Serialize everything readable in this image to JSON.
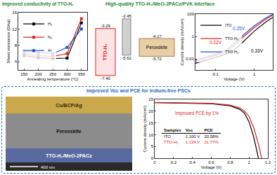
{
  "headers": {
    "conductivity": "Improved conductivity of TTO-H₂",
    "interface": "High-quality TTO-H₂/MeO-2PACz/PVK interface",
    "device": "Improved Voc and PCE for indium-free PSCs"
  },
  "chart_data": [
    {
      "type": "line",
      "x_label": "Annealing temperature (°C)",
      "y_label": "Sheet resistance (Ω/sq)",
      "x": [
        150,
        200,
        250,
        300,
        350
      ],
      "series": [
        {
          "name": "H₂",
          "color": "#000000",
          "values": [
            5.5,
            5.0,
            4.8,
            4.9,
            13.5
          ]
        },
        {
          "name": "N₂",
          "color": "#e02020",
          "values": [
            6.0,
            5.5,
            5.3,
            6.0,
            14.5
          ]
        },
        {
          "name": "Ar",
          "color": "#2050d0",
          "values": [
            6.5,
            6.2,
            6.0,
            7.5,
            12.0
          ]
        }
      ],
      "xlim": [
        130,
        370
      ],
      "xticks": [
        150,
        200,
        250,
        300,
        350
      ],
      "ylim": [
        2,
        16
      ],
      "yticks": [
        4,
        8,
        12,
        16
      ],
      "grid": false,
      "legend": "upper left",
      "marker": "square"
    },
    {
      "type": "line",
      "x_label": "Voltage (V)",
      "y_label": "Current density (mA/cm²)",
      "log": true,
      "x": [
        0.03,
        0.06,
        0.1,
        0.2,
        0.3,
        0.5,
        1,
        2,
        3
      ],
      "series": [
        {
          "name": "ITO",
          "color": "#000000",
          "values": [
            0.004,
            0.008,
            0.013,
            0.03,
            0.06,
            0.3,
            3,
            20,
            50
          ]
        },
        {
          "name": "TTO-N₂",
          "color": "#e02020",
          "values": [
            0.006,
            0.012,
            0.02,
            0.05,
            0.15,
            0.8,
            6,
            35,
            80
          ]
        },
        {
          "name": "TTO-H₂",
          "color": "#2050d0",
          "values": [
            0.008,
            0.016,
            0.027,
            0.07,
            0.25,
            1.2,
            9,
            45,
            95
          ]
        }
      ],
      "xlim": [
        0.03,
        3
      ],
      "xticks": [
        0.1,
        1
      ],
      "ylim": [
        0.001,
        100
      ],
      "yticks": [
        0.01,
        1,
        100
      ],
      "grid": false,
      "legend": "upper left",
      "annotations": [
        {
          "text": "0.22V",
          "x": 0.1,
          "y": 0.3,
          "color": "#e02020"
        },
        {
          "text": "0.25V",
          "x": 0.4,
          "y": 5,
          "color": "#2050d0"
        },
        {
          "text": "0.33V",
          "x": 1.2,
          "y": 0.05,
          "color": "#000000"
        }
      ]
    },
    {
      "type": "line",
      "x_label": "Voltage (V)",
      "y_label": "Current density (mA/cm²)",
      "series": [
        {
          "name": "ITO",
          "color": "#000000",
          "x": [
            0,
            0.2,
            0.4,
            0.6,
            0.8,
            0.9,
            0.95,
            1.0,
            1.05,
            1.1
          ],
          "values": [
            23.6,
            23.5,
            23.4,
            23.2,
            22.3,
            20.8,
            19.3,
            15.5,
            9.0,
            0
          ]
        },
        {
          "name": "TTO-H₂",
          "color": "#e02020",
          "x": [
            0,
            0.2,
            0.4,
            0.6,
            0.8,
            0.9,
            0.95,
            1.0,
            1.05,
            1.1,
            1.134
          ],
          "values": [
            23.7,
            23.6,
            23.5,
            23.3,
            22.6,
            21.4,
            20.2,
            17.8,
            13.0,
            6.0,
            0
          ]
        }
      ],
      "xlim": [
        0,
        1.2
      ],
      "xticks": [
        0,
        0.2,
        0.4,
        0.6,
        0.8,
        1.0,
        1.2
      ],
      "ylim": [
        0,
        25
      ],
      "yticks": [
        0,
        5,
        10,
        15,
        20,
        25
      ],
      "grid": false,
      "annotations": [
        {
          "text": "Improved PCE by 1%",
          "x": 0.45,
          "y": 19,
          "color": "#e02020"
        }
      ],
      "table": {
        "header": [
          "Samples",
          "Voc",
          "PCE"
        ],
        "rows": [
          [
            "ITO",
            "1.100 V",
            "20.58%"
          ],
          [
            "TTO-H₂",
            "1.134 V",
            "21.77%"
          ]
        ],
        "colors": [
          "#000000",
          "#e02020"
        ]
      }
    }
  ],
  "energy_diagram": {
    "layers": [
      {
        "name": "TTO-H₂",
        "top": {
          "value": -3.29,
          "label": "-3.29"
        },
        "bottom": {
          "value": -7.4,
          "label": "-7.40"
        },
        "color": "#e02020"
      },
      {
        "name": null,
        "top": {
          "value": -2.45,
          "label": "-2.45"
        },
        "bottom": {
          "value": -5.62,
          "label": "-5.62"
        },
        "color": "#808080"
      },
      {
        "name": "Perovskite",
        "top": {
          "value": -4.17,
          "label": "-4.17"
        },
        "bottom": {
          "value": -5.72,
          "label": "-5.72"
        },
        "color": "#b07a40"
      }
    ]
  },
  "sem_image": {
    "layers": [
      "Cu/BCP/Ag",
      "Perovskite",
      "TTO-H₂/MeO-2PACz"
    ],
    "scale_bar": "400 nm"
  }
}
